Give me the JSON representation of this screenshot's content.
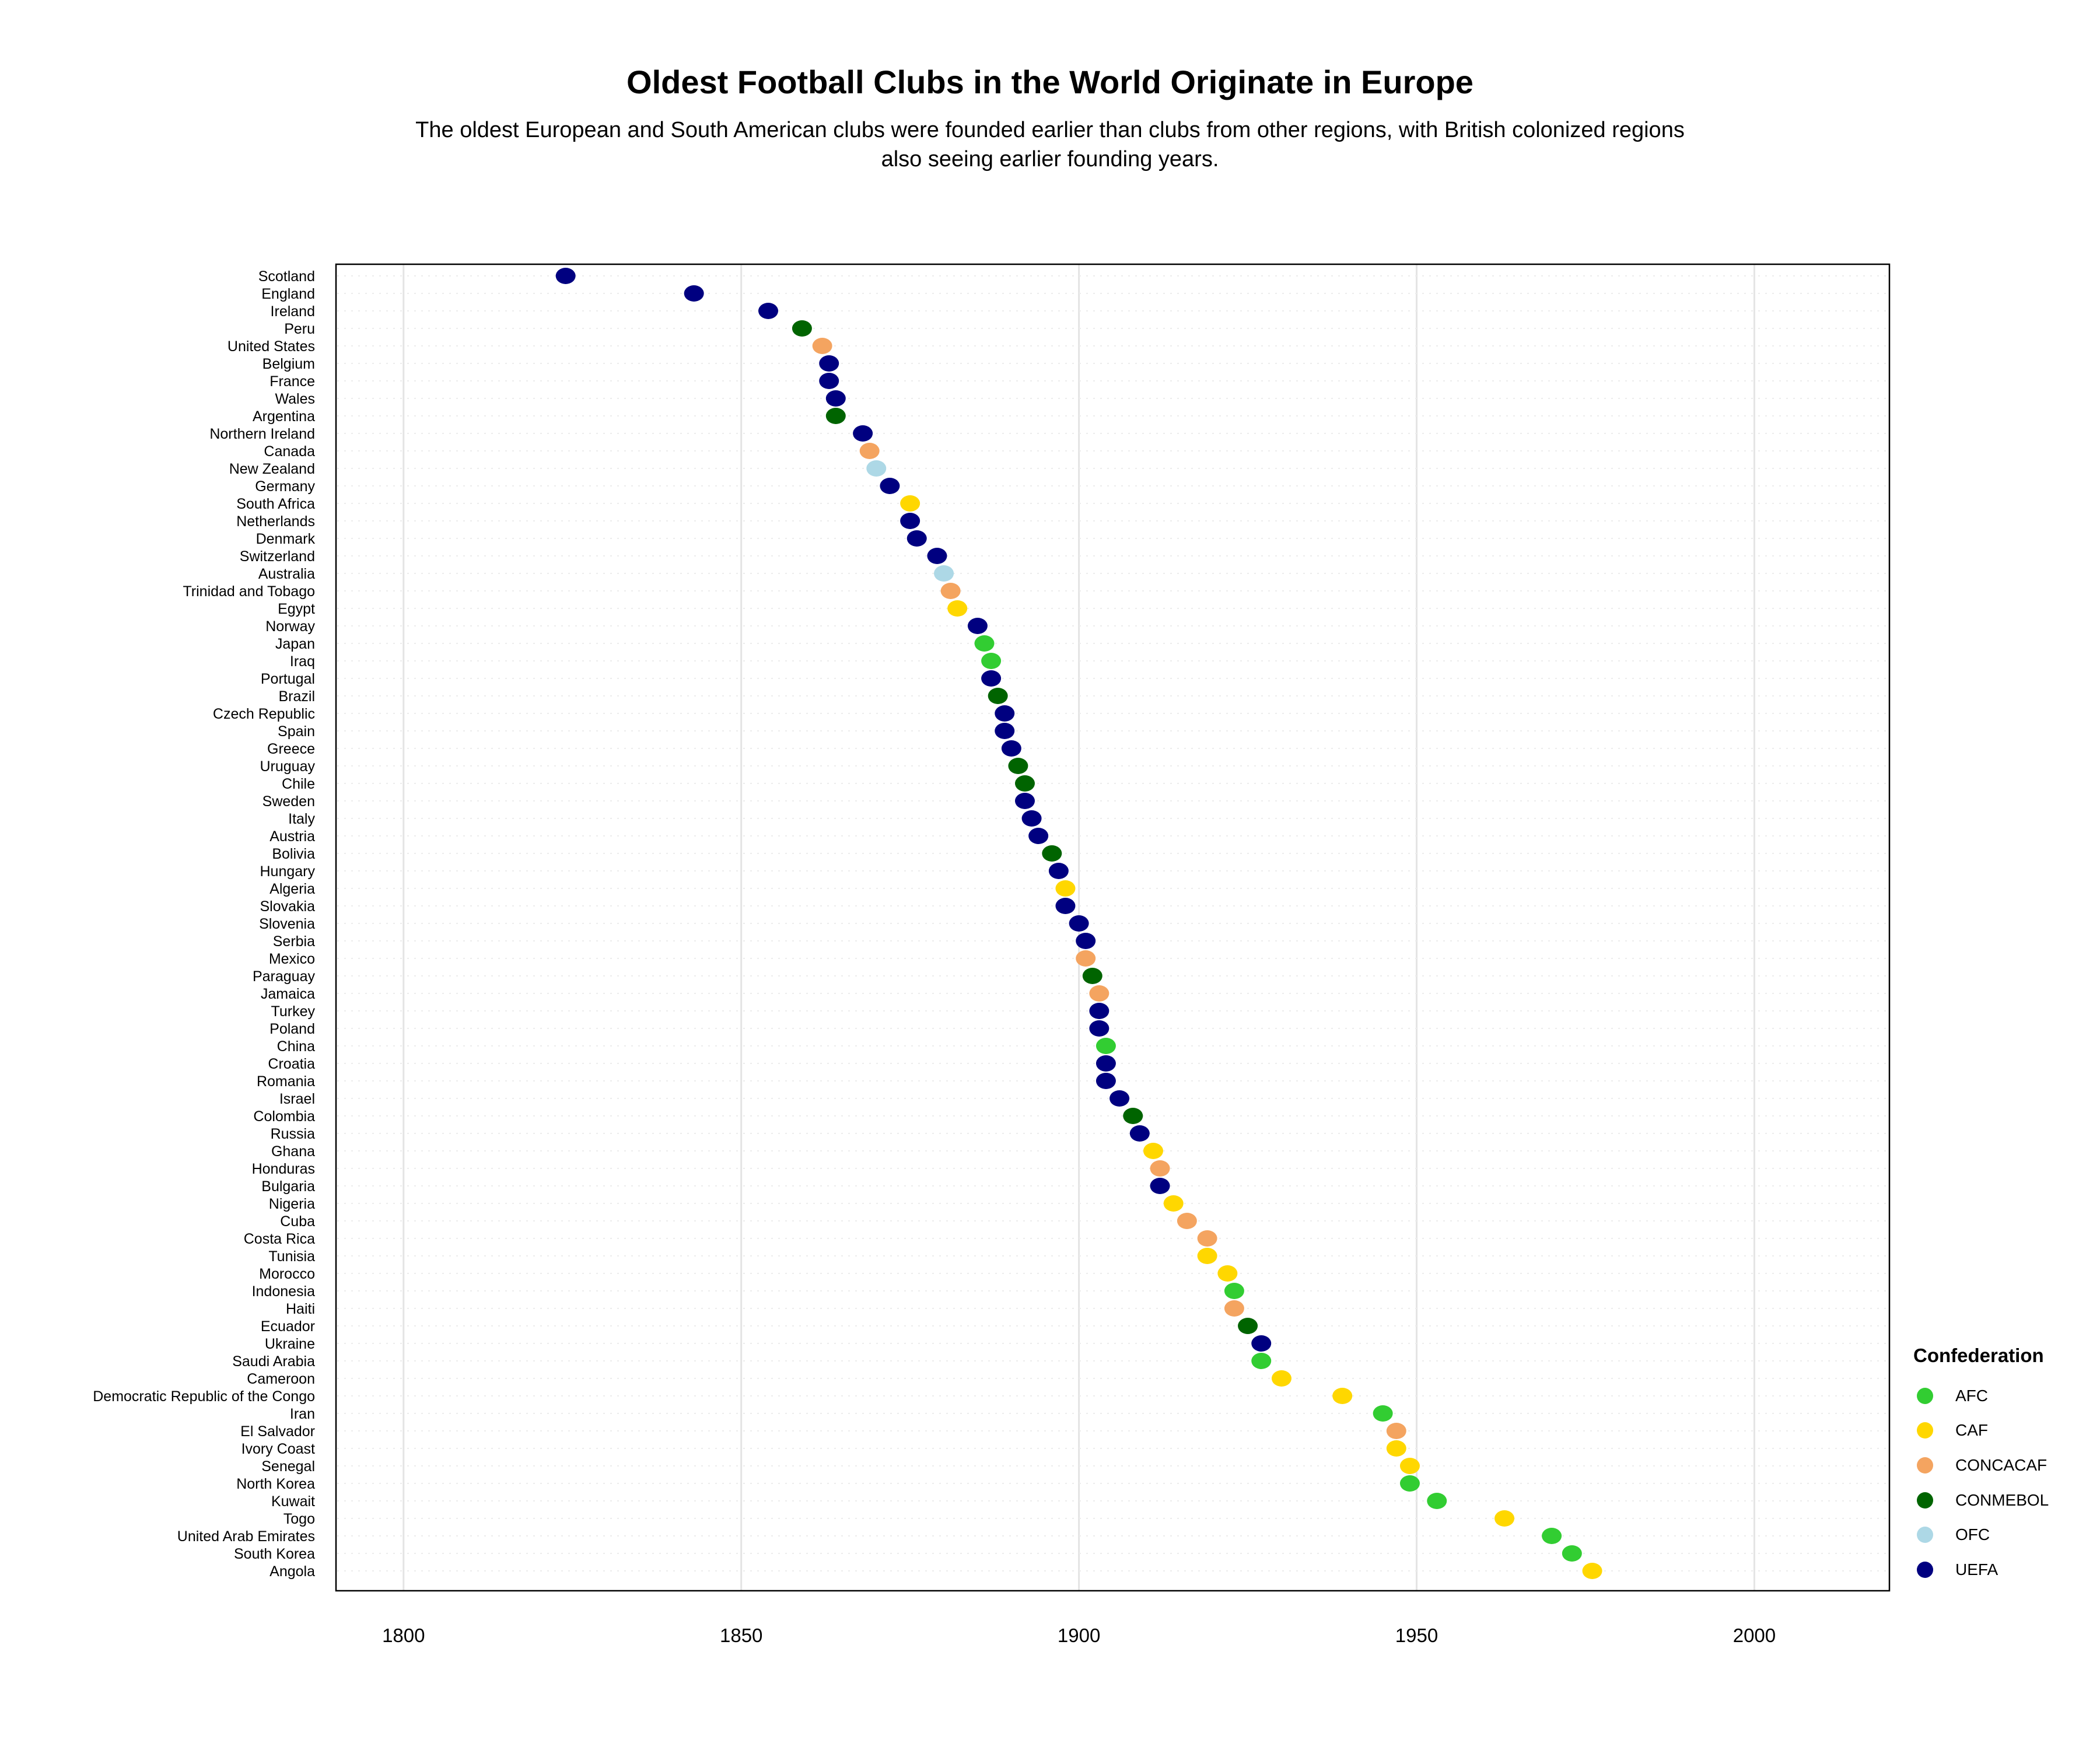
{
  "chart_data": {
    "type": "scatter",
    "title": "Oldest Football Clubs in the World Originate in Europe",
    "subtitle": "The oldest European and South American clubs were founded earlier than clubs from other regions, with British colonized regions also seeing earlier founding years.",
    "xlabel": "",
    "ylabel": "",
    "xlim": [
      1790,
      2020
    ],
    "x_ticks": [
      1800,
      1850,
      1900,
      1950,
      2000
    ],
    "grid": true,
    "legend": {
      "title": "Confederation",
      "position": "right-bottom",
      "items": [
        {
          "name": "AFC",
          "color": "#32CD32"
        },
        {
          "name": "CAF",
          "color": "#FFD700"
        },
        {
          "name": "CONCACAF",
          "color": "#F4A460"
        },
        {
          "name": "CONMEBOL",
          "color": "#006400"
        },
        {
          "name": "OFC",
          "color": "#ADD8E6"
        },
        {
          "name": "UEFA",
          "color": "#000080"
        }
      ]
    },
    "points": [
      {
        "country": "Scotland",
        "year": 1824,
        "confederation": "UEFA"
      },
      {
        "country": "England",
        "year": 1843,
        "confederation": "UEFA"
      },
      {
        "country": "Ireland",
        "year": 1854,
        "confederation": "UEFA"
      },
      {
        "country": "Peru",
        "year": 1859,
        "confederation": "CONMEBOL"
      },
      {
        "country": "United States",
        "year": 1862,
        "confederation": "CONCACAF"
      },
      {
        "country": "Belgium",
        "year": 1863,
        "confederation": "UEFA"
      },
      {
        "country": "France",
        "year": 1863,
        "confederation": "UEFA"
      },
      {
        "country": "Wales",
        "year": 1864,
        "confederation": "UEFA"
      },
      {
        "country": "Argentina",
        "year": 1864,
        "confederation": "CONMEBOL"
      },
      {
        "country": "Northern Ireland",
        "year": 1868,
        "confederation": "UEFA"
      },
      {
        "country": "Canada",
        "year": 1869,
        "confederation": "CONCACAF"
      },
      {
        "country": "New Zealand",
        "year": 1870,
        "confederation": "OFC"
      },
      {
        "country": "Germany",
        "year": 1872,
        "confederation": "UEFA"
      },
      {
        "country": "South Africa",
        "year": 1875,
        "confederation": "CAF"
      },
      {
        "country": "Netherlands",
        "year": 1875,
        "confederation": "UEFA"
      },
      {
        "country": "Denmark",
        "year": 1876,
        "confederation": "UEFA"
      },
      {
        "country": "Switzerland",
        "year": 1879,
        "confederation": "UEFA"
      },
      {
        "country": "Australia",
        "year": 1880,
        "confederation": "OFC"
      },
      {
        "country": "Trinidad and Tobago",
        "year": 1881,
        "confederation": "CONCACAF"
      },
      {
        "country": "Egypt",
        "year": 1882,
        "confederation": "CAF"
      },
      {
        "country": "Norway",
        "year": 1885,
        "confederation": "UEFA"
      },
      {
        "country": "Japan",
        "year": 1886,
        "confederation": "AFC"
      },
      {
        "country": "Iraq",
        "year": 1887,
        "confederation": "AFC"
      },
      {
        "country": "Portugal",
        "year": 1887,
        "confederation": "UEFA"
      },
      {
        "country": "Brazil",
        "year": 1888,
        "confederation": "CONMEBOL"
      },
      {
        "country": "Czech Republic",
        "year": 1889,
        "confederation": "UEFA"
      },
      {
        "country": "Spain",
        "year": 1889,
        "confederation": "UEFA"
      },
      {
        "country": "Greece",
        "year": 1890,
        "confederation": "UEFA"
      },
      {
        "country": "Uruguay",
        "year": 1891,
        "confederation": "CONMEBOL"
      },
      {
        "country": "Chile",
        "year": 1892,
        "confederation": "CONMEBOL"
      },
      {
        "country": "Sweden",
        "year": 1892,
        "confederation": "UEFA"
      },
      {
        "country": "Italy",
        "year": 1893,
        "confederation": "UEFA"
      },
      {
        "country": "Austria",
        "year": 1894,
        "confederation": "UEFA"
      },
      {
        "country": "Bolivia",
        "year": 1896,
        "confederation": "CONMEBOL"
      },
      {
        "country": "Hungary",
        "year": 1897,
        "confederation": "UEFA"
      },
      {
        "country": "Algeria",
        "year": 1898,
        "confederation": "CAF"
      },
      {
        "country": "Slovakia",
        "year": 1898,
        "confederation": "UEFA"
      },
      {
        "country": "Slovenia",
        "year": 1900,
        "confederation": "UEFA"
      },
      {
        "country": "Serbia",
        "year": 1901,
        "confederation": "UEFA"
      },
      {
        "country": "Mexico",
        "year": 1901,
        "confederation": "CONCACAF"
      },
      {
        "country": "Paraguay",
        "year": 1902,
        "confederation": "CONMEBOL"
      },
      {
        "country": "Jamaica",
        "year": 1903,
        "confederation": "CONCACAF"
      },
      {
        "country": "Turkey",
        "year": 1903,
        "confederation": "UEFA"
      },
      {
        "country": "Poland",
        "year": 1903,
        "confederation": "UEFA"
      },
      {
        "country": "China",
        "year": 1904,
        "confederation": "AFC"
      },
      {
        "country": "Croatia",
        "year": 1904,
        "confederation": "UEFA"
      },
      {
        "country": "Romania",
        "year": 1904,
        "confederation": "UEFA"
      },
      {
        "country": "Israel",
        "year": 1906,
        "confederation": "UEFA"
      },
      {
        "country": "Colombia",
        "year": 1908,
        "confederation": "CONMEBOL"
      },
      {
        "country": "Russia",
        "year": 1909,
        "confederation": "UEFA"
      },
      {
        "country": "Ghana",
        "year": 1911,
        "confederation": "CAF"
      },
      {
        "country": "Honduras",
        "year": 1912,
        "confederation": "CONCACAF"
      },
      {
        "country": "Bulgaria",
        "year": 1912,
        "confederation": "UEFA"
      },
      {
        "country": "Nigeria",
        "year": 1914,
        "confederation": "CAF"
      },
      {
        "country": "Cuba",
        "year": 1916,
        "confederation": "CONCACAF"
      },
      {
        "country": "Costa Rica",
        "year": 1919,
        "confederation": "CONCACAF"
      },
      {
        "country": "Tunisia",
        "year": 1919,
        "confederation": "CAF"
      },
      {
        "country": "Morocco",
        "year": 1922,
        "confederation": "CAF"
      },
      {
        "country": "Indonesia",
        "year": 1923,
        "confederation": "AFC"
      },
      {
        "country": "Haiti",
        "year": 1923,
        "confederation": "CONCACAF"
      },
      {
        "country": "Ecuador",
        "year": 1925,
        "confederation": "CONMEBOL"
      },
      {
        "country": "Ukraine",
        "year": 1927,
        "confederation": "UEFA"
      },
      {
        "country": "Saudi Arabia",
        "year": 1927,
        "confederation": "AFC"
      },
      {
        "country": "Cameroon",
        "year": 1930,
        "confederation": "CAF"
      },
      {
        "country": "Democratic Republic of the Congo",
        "year": 1939,
        "confederation": "CAF"
      },
      {
        "country": "Iran",
        "year": 1945,
        "confederation": "AFC"
      },
      {
        "country": "El Salvador",
        "year": 1947,
        "confederation": "CONCACAF"
      },
      {
        "country": "Ivory Coast",
        "year": 1947,
        "confederation": "CAF"
      },
      {
        "country": "Senegal",
        "year": 1949,
        "confederation": "CAF"
      },
      {
        "country": "North Korea",
        "year": 1949,
        "confederation": "AFC"
      },
      {
        "country": "Kuwait",
        "year": 1953,
        "confederation": "AFC"
      },
      {
        "country": "Togo",
        "year": 1963,
        "confederation": "CAF"
      },
      {
        "country": "United Arab Emirates",
        "year": 1970,
        "confederation": "AFC"
      },
      {
        "country": "South Korea",
        "year": 1973,
        "confederation": "AFC"
      },
      {
        "country": "Angola",
        "year": 1976,
        "confederation": "CAF"
      }
    ]
  }
}
